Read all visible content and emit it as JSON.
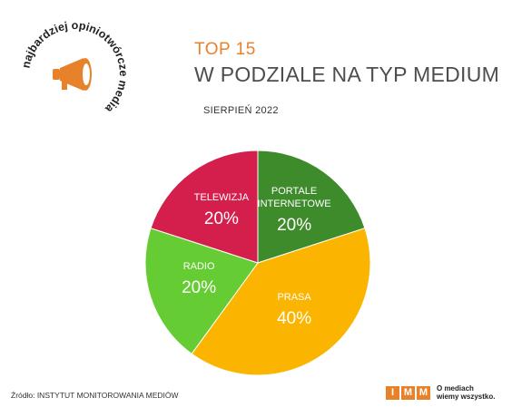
{
  "logo": {
    "ring_text": "najbardziej opiniotwórcze media",
    "icon": "megaphone-icon",
    "color": "#e8822a"
  },
  "header": {
    "kicker": "TOP 15",
    "title": "W PODZIALE NA TYP MEDIUM",
    "subtitle": "SIERPIEŃ 2022"
  },
  "chart_data": {
    "type": "pie",
    "title": "",
    "slices": [
      {
        "label": "PORTALE INTERNETOWE",
        "label_lines": [
          "PORTALE",
          "INTERNETOWE"
        ],
        "value": 20,
        "display": "20%",
        "color": "#3d8b2a"
      },
      {
        "label": "PRASA",
        "label_lines": [
          "PRASA"
        ],
        "value": 40,
        "display": "40%",
        "color": "#fbb500"
      },
      {
        "label": "RADIO",
        "label_lines": [
          "RADIO"
        ],
        "value": 20,
        "display": "20%",
        "color": "#66cc33"
      },
      {
        "label": "TELEWIZJA",
        "label_lines": [
          "TELEWIZJA"
        ],
        "value": 20,
        "display": "20%",
        "color": "#d41f4d"
      }
    ]
  },
  "footer": {
    "source": "Źródło: INSTYTUT MONITOROWANIA MEDIÓW",
    "brand_letters": [
      "I",
      "M",
      "M"
    ],
    "tagline_line1": "O mediach",
    "tagline_line2": "wiemy wszystko."
  }
}
